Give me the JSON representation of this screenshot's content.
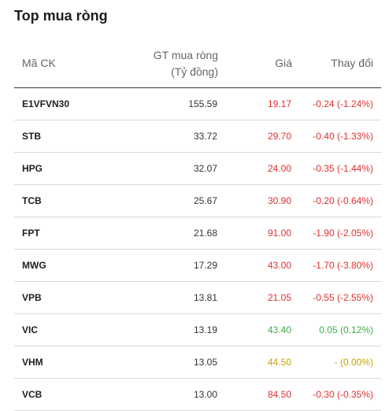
{
  "title": "Top mua ròng",
  "headers": {
    "code": "Mã CK",
    "net_value_line1": "GT mua ròng",
    "net_value_line2": "(Tỷ đồng)",
    "price": "Giá",
    "change": "Thay đổi"
  },
  "colors": {
    "down": "#e03131",
    "up": "#3fae49",
    "flat": "#c9a400"
  },
  "rows": [
    {
      "code": "E1VFVN30",
      "value": "155.59",
      "price": "19.17",
      "change": "-0.24 (-1.24%)",
      "trend": "down"
    },
    {
      "code": "STB",
      "value": "33.72",
      "price": "29.70",
      "change": "-0.40 (-1.33%)",
      "trend": "down"
    },
    {
      "code": "HPG",
      "value": "32.07",
      "price": "24.00",
      "change": "-0.35 (-1.44%)",
      "trend": "down"
    },
    {
      "code": "TCB",
      "value": "25.67",
      "price": "30.90",
      "change": "-0.20 (-0.64%)",
      "trend": "down"
    },
    {
      "code": "FPT",
      "value": "21.68",
      "price": "91.00",
      "change": "-1.90 (-2.05%)",
      "trend": "down"
    },
    {
      "code": "MWG",
      "value": "17.29",
      "price": "43.00",
      "change": "-1.70 (-3.80%)",
      "trend": "down"
    },
    {
      "code": "VPB",
      "value": "13.81",
      "price": "21.05",
      "change": "-0.55 (-2.55%)",
      "trend": "down"
    },
    {
      "code": "VIC",
      "value": "13.19",
      "price": "43.40",
      "change": "0.05 (0.12%)",
      "trend": "up"
    },
    {
      "code": "VHM",
      "value": "13.05",
      "price": "44.50",
      "change": "- (0.00%)",
      "trend": "flat"
    },
    {
      "code": "VCB",
      "value": "13.00",
      "price": "84.50",
      "change": "-0.30 (-0.35%)",
      "trend": "down"
    }
  ]
}
